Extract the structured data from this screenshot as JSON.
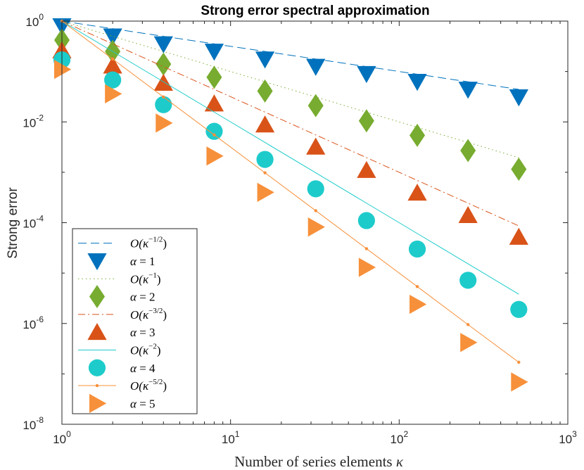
{
  "chart_data": {
    "type": "scatter",
    "title": "Strong error spectral approximation",
    "xlabel_text": "Number of series elements",
    "xlabel_symbol": "κ",
    "ylabel": "Strong error",
    "xscale": "log",
    "yscale": "log",
    "xlim": [
      1,
      1000
    ],
    "ylim": [
      1e-08,
      1
    ],
    "x_ticks": [
      {
        "value": 1,
        "base": "10",
        "exp": "0"
      },
      {
        "value": 10,
        "base": "10",
        "exp": "1"
      },
      {
        "value": 100,
        "base": "10",
        "exp": "2"
      },
      {
        "value": 1000,
        "base": "10",
        "exp": "3"
      }
    ],
    "y_ticks": [
      {
        "value": 1,
        "base": "10",
        "exp": "0"
      },
      {
        "value": 0.01,
        "base": "10",
        "exp": "-2"
      },
      {
        "value": 0.0001,
        "base": "10",
        "exp": "-4"
      },
      {
        "value": 1e-06,
        "base": "10",
        "exp": "-6"
      },
      {
        "value": 1e-08,
        "base": "10",
        "exp": "-8"
      }
    ],
    "x": [
      1,
      2,
      4,
      8,
      16,
      32,
      64,
      128,
      256,
      512
    ],
    "series": [
      {
        "name": "O(κ^{-1/2})",
        "legend_base": "O(κ",
        "legend_exp": "−1/2",
        "legend_close": ")",
        "kind": "line",
        "dash": "dashed",
        "color": "#0072BD",
        "values": [
          1,
          0.7071,
          0.5,
          0.3536,
          0.25,
          0.1768,
          0.125,
          0.0884,
          0.0625,
          0.0442
        ]
      },
      {
        "name": "α = 1",
        "legend_sym": "α",
        "legend_rest": " = 1",
        "kind": "marker",
        "marker": "triangle-down",
        "color": "#0072BD",
        "values": [
          0.8,
          0.5,
          0.35,
          0.25,
          0.175,
          0.125,
          0.09,
          0.063,
          0.044,
          0.031
        ]
      },
      {
        "name": "O(κ^{-1})",
        "legend_base": "O(κ",
        "legend_exp": "−1",
        "legend_close": ")",
        "kind": "line",
        "dash": "dotted",
        "color": "#77AC30",
        "values": [
          1,
          0.5,
          0.25,
          0.125,
          0.0625,
          0.03125,
          0.015625,
          0.0078125,
          0.00390625,
          0.001953
        ]
      },
      {
        "name": "α = 2",
        "legend_sym": "α",
        "legend_rest": " = 2",
        "kind": "marker",
        "marker": "diamond",
        "color": "#77AC30",
        "values": [
          0.42,
          0.25,
          0.14,
          0.077,
          0.041,
          0.021,
          0.0105,
          0.0054,
          0.0027,
          0.00115
        ]
      },
      {
        "name": "O(κ^{-3/2})",
        "legend_base": "O(κ",
        "legend_exp": "−3/2",
        "legend_close": ")",
        "kind": "line",
        "dash": "dashdot",
        "color": "#D95319",
        "values": [
          1,
          0.3536,
          0.125,
          0.0442,
          0.015625,
          0.005524,
          0.001953,
          0.00069,
          0.000244,
          8.63e-05
        ]
      },
      {
        "name": "α = 3",
        "legend_sym": "α",
        "legend_rest": " = 3",
        "kind": "marker",
        "marker": "triangle-up",
        "color": "#D95319",
        "values": [
          0.26,
          0.13,
          0.059,
          0.023,
          0.0088,
          0.0032,
          0.0011,
          0.00039,
          0.00014,
          5.2e-05
        ]
      },
      {
        "name": "O(κ^{-2})",
        "legend_base": "O(κ",
        "legend_exp": "−2",
        "legend_close": ")",
        "kind": "line",
        "dash": "solid",
        "color": "#1ECBCB",
        "values": [
          1,
          0.25,
          0.0625,
          0.015625,
          0.003906,
          0.000977,
          0.000244,
          6.1e-05,
          1.53e-05,
          3.8e-06
        ]
      },
      {
        "name": "α = 4",
        "legend_sym": "α",
        "legend_rest": " = 4",
        "kind": "marker",
        "marker": "circle",
        "color": "#1ECBCB",
        "values": [
          0.17,
          0.068,
          0.022,
          0.0065,
          0.0018,
          0.00047,
          0.00011,
          3e-05,
          7.2e-06,
          1.9e-06
        ]
      },
      {
        "name": "O(κ^{-5/2})",
        "legend_base": "O(κ",
        "legend_exp": "−5/2",
        "legend_close": ")",
        "kind": "line-dot",
        "dash": "solid",
        "color": "#F7903A",
        "values": [
          1,
          0.1768,
          0.03125,
          0.005524,
          0.000977,
          0.000173,
          3.05e-05,
          5.4e-06,
          9.5e-07,
          1.7e-07
        ]
      },
      {
        "name": "α = 5",
        "legend_sym": "α",
        "legend_rest": " = 5",
        "kind": "marker",
        "marker": "triangle-right",
        "color": "#F7903A",
        "values": [
          0.11,
          0.036,
          0.0095,
          0.0021,
          0.0004,
          8.2e-05,
          1.3e-05,
          2.4e-06,
          4.2e-07,
          6.9e-08
        ]
      }
    ],
    "legend_position": "bottom-left"
  }
}
